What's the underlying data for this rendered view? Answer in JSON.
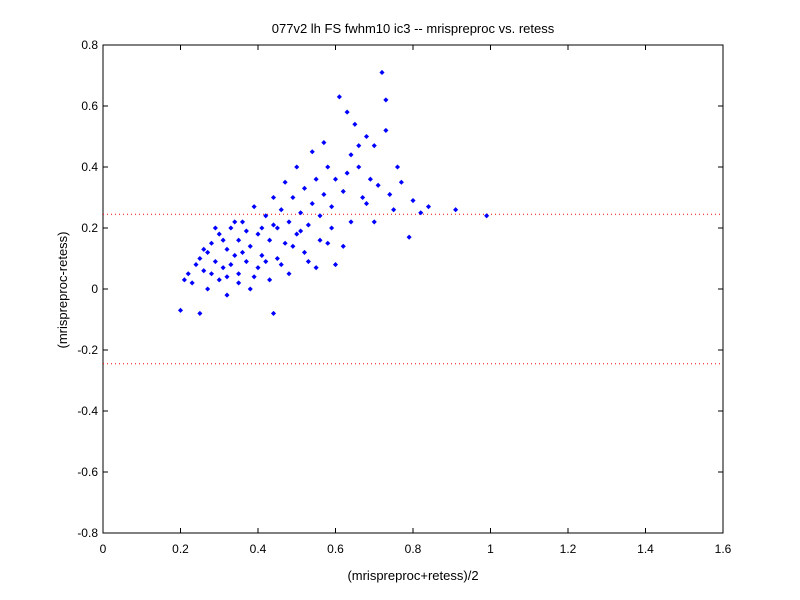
{
  "chart_data": {
    "type": "scatter",
    "title": "077v2 lh FS fwhm10 ic3 -- mrispreproc vs. retess",
    "xlabel": "(mrispreproc+retess)/2",
    "ylabel": "(mrispreproc-retess)",
    "xlim": [
      0,
      1.6
    ],
    "ylim": [
      -0.8,
      0.8
    ],
    "xticks": [
      0,
      0.2,
      0.4,
      0.6,
      0.8,
      1.0,
      1.2,
      1.4,
      1.6
    ],
    "yticks": [
      -0.8,
      -0.6,
      -0.4,
      -0.2,
      0,
      0.2,
      0.4,
      0.6,
      0.8
    ],
    "xtick_labels": [
      "0",
      "0.2",
      "0.4",
      "0.6",
      "0.8",
      "1",
      "1.2",
      "1.4",
      "1.6"
    ],
    "ytick_labels": [
      "-0.8",
      "-0.6",
      "-0.4",
      "-0.2",
      "0",
      "0.2",
      "0.4",
      "0.6",
      "0.8"
    ],
    "grid": false,
    "reference_lines": [
      {
        "y": 0.245,
        "style": "dotted",
        "color": "#ff0000"
      },
      {
        "y": -0.245,
        "style": "dotted",
        "color": "#ff0000"
      }
    ],
    "series": [
      {
        "marker_color": "#0000ff",
        "points": [
          [
            0.2,
            -0.07
          ],
          [
            0.25,
            -0.08
          ],
          [
            0.44,
            -0.08
          ],
          [
            0.21,
            0.03
          ],
          [
            0.22,
            0.05
          ],
          [
            0.23,
            0.02
          ],
          [
            0.24,
            0.08
          ],
          [
            0.25,
            0.1
          ],
          [
            0.26,
            0.06
          ],
          [
            0.27,
            0.0
          ],
          [
            0.27,
            0.12
          ],
          [
            0.28,
            0.15
          ],
          [
            0.29,
            0.09
          ],
          [
            0.3,
            0.03
          ],
          [
            0.3,
            0.18
          ],
          [
            0.31,
            0.07
          ],
          [
            0.32,
            0.13
          ],
          [
            0.32,
            -0.02
          ],
          [
            0.33,
            0.2
          ],
          [
            0.34,
            0.11
          ],
          [
            0.35,
            0.05
          ],
          [
            0.35,
            0.16
          ],
          [
            0.36,
            0.22
          ],
          [
            0.37,
            0.09
          ],
          [
            0.38,
            0.14
          ],
          [
            0.38,
            0.0
          ],
          [
            0.39,
            0.27
          ],
          [
            0.4,
            0.18
          ],
          [
            0.4,
            0.07
          ],
          [
            0.41,
            0.11
          ],
          [
            0.42,
            0.24
          ],
          [
            0.43,
            0.16
          ],
          [
            0.43,
            0.03
          ],
          [
            0.44,
            0.3
          ],
          [
            0.45,
            0.2
          ],
          [
            0.45,
            0.1
          ],
          [
            0.46,
            0.26
          ],
          [
            0.47,
            0.15
          ],
          [
            0.47,
            0.35
          ],
          [
            0.48,
            0.22
          ],
          [
            0.48,
            0.05
          ],
          [
            0.49,
            0.3
          ],
          [
            0.5,
            0.18
          ],
          [
            0.5,
            0.4
          ],
          [
            0.51,
            0.25
          ],
          [
            0.52,
            0.12
          ],
          [
            0.52,
            0.33
          ],
          [
            0.53,
            0.21
          ],
          [
            0.54,
            0.45
          ],
          [
            0.54,
            0.28
          ],
          [
            0.55,
            0.07
          ],
          [
            0.55,
            0.36
          ],
          [
            0.56,
            0.24
          ],
          [
            0.57,
            0.48
          ],
          [
            0.57,
            0.31
          ],
          [
            0.58,
            0.15
          ],
          [
            0.58,
            0.4
          ],
          [
            0.59,
            0.27
          ],
          [
            0.6,
            0.36
          ],
          [
            0.6,
            0.08
          ],
          [
            0.61,
            0.63
          ],
          [
            0.62,
            0.32
          ],
          [
            0.63,
            0.58
          ],
          [
            0.64,
            0.44
          ],
          [
            0.64,
            0.22
          ],
          [
            0.65,
            0.54
          ],
          [
            0.66,
            0.4
          ],
          [
            0.67,
            0.3
          ],
          [
            0.68,
            0.5
          ],
          [
            0.69,
            0.36
          ],
          [
            0.7,
            0.22
          ],
          [
            0.7,
            0.47
          ],
          [
            0.71,
            0.34
          ],
          [
            0.72,
            0.71
          ],
          [
            0.73,
            0.62
          ],
          [
            0.73,
            0.52
          ],
          [
            0.74,
            0.31
          ],
          [
            0.75,
            0.26
          ],
          [
            0.76,
            0.4
          ],
          [
            0.77,
            0.35
          ],
          [
            0.79,
            0.17
          ],
          [
            0.8,
            0.29
          ],
          [
            0.82,
            0.25
          ],
          [
            0.84,
            0.27
          ],
          [
            0.91,
            0.26
          ],
          [
            0.99,
            0.24
          ],
          [
            0.26,
            0.13
          ],
          [
            0.28,
            0.05
          ],
          [
            0.29,
            0.2
          ],
          [
            0.31,
            0.16
          ],
          [
            0.33,
            0.08
          ],
          [
            0.34,
            0.22
          ],
          [
            0.36,
            0.12
          ],
          [
            0.37,
            0.19
          ],
          [
            0.39,
            0.04
          ],
          [
            0.41,
            0.2
          ],
          [
            0.42,
            0.09
          ],
          [
            0.44,
            0.21
          ],
          [
            0.46,
            0.08
          ],
          [
            0.49,
            0.14
          ],
          [
            0.51,
            0.19
          ],
          [
            0.53,
            0.09
          ],
          [
            0.56,
            0.16
          ],
          [
            0.59,
            0.2
          ],
          [
            0.62,
            0.14
          ],
          [
            0.63,
            0.38
          ],
          [
            0.66,
            0.47
          ],
          [
            0.68,
            0.28
          ],
          [
            0.32,
            0.04
          ],
          [
            0.35,
            0.02
          ]
        ]
      }
    ]
  }
}
